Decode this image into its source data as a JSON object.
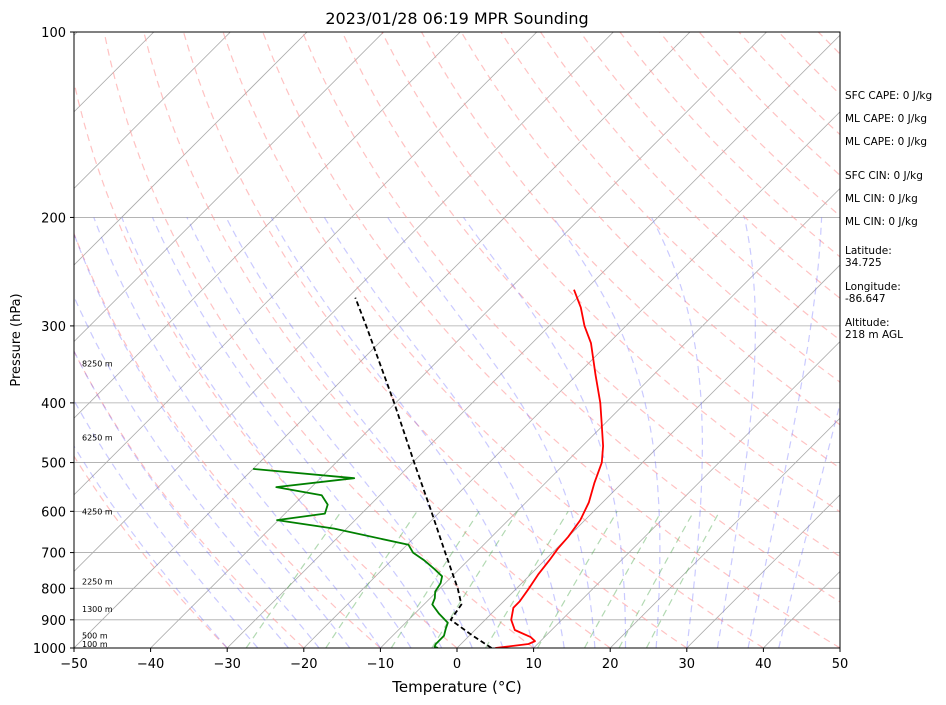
{
  "chart_data": {
    "type": "line",
    "title": "2023/01/28 06:19 MPR Sounding",
    "xlabel": "Temperature (°C)",
    "ylabel": "Pressure (hPa)",
    "xlim": [
      -50,
      50
    ],
    "ylim": [
      1000,
      100
    ],
    "y_scale": "log",
    "grid": true,
    "x_ticks": [
      -50,
      -40,
      -30,
      -20,
      -10,
      0,
      10,
      20,
      30,
      40,
      50
    ],
    "x_tick_labels": [
      "−50",
      "−40",
      "−30",
      "−20",
      "−10",
      "0",
      "10",
      "20",
      "30",
      "40",
      "50"
    ],
    "y_ticks": [
      1000,
      900,
      800,
      700,
      600,
      500,
      400,
      300,
      200,
      100
    ],
    "y_tick_labels": [
      "1000",
      "900",
      "800",
      "700",
      "600",
      "500",
      "400",
      "300",
      "200",
      "100"
    ],
    "skew_deg": 45,
    "series": [
      {
        "color": "#ff0000",
        "points": [
          [
            1000,
            5.0
          ],
          [
            985,
            8.8
          ],
          [
            975,
            9.3
          ],
          [
            960,
            8.2
          ],
          [
            935,
            5.2
          ],
          [
            900,
            3.4
          ],
          [
            860,
            2.1
          ],
          [
            840,
            2.1
          ],
          [
            800,
            1.6
          ],
          [
            760,
            1.0
          ],
          [
            720,
            0.6
          ],
          [
            690,
            0.2
          ],
          [
            660,
            0.0
          ],
          [
            620,
            -0.6
          ],
          [
            580,
            -1.8
          ],
          [
            540,
            -3.6
          ],
          [
            500,
            -5.3
          ],
          [
            470,
            -7.3
          ],
          [
            430,
            -10.6
          ],
          [
            400,
            -13.3
          ],
          [
            360,
            -17.6
          ],
          [
            320,
            -22.3
          ],
          [
            300,
            -25.4
          ],
          [
            280,
            -28.3
          ],
          [
            262,
            -31.5
          ]
        ]
      },
      {
        "color": "#008000",
        "points": [
          [
            1000,
            -2.5
          ],
          [
            995,
            -3.1
          ],
          [
            985,
            -3.3
          ],
          [
            970,
            -3.3
          ],
          [
            955,
            -3.3
          ],
          [
            930,
            -4.0
          ],
          [
            910,
            -4.5
          ],
          [
            880,
            -6.8
          ],
          [
            850,
            -8.9
          ],
          [
            830,
            -9.4
          ],
          [
            810,
            -10.2
          ],
          [
            785,
            -10.6
          ],
          [
            765,
            -11.3
          ],
          [
            745,
            -13.2
          ],
          [
            720,
            -15.8
          ],
          [
            700,
            -18.2
          ],
          [
            680,
            -19.8
          ],
          [
            640,
            -31.6
          ],
          [
            620,
            -40.2
          ],
          [
            605,
            -34.8
          ],
          [
            585,
            -35.6
          ],
          [
            565,
            -37.6
          ],
          [
            548,
            -44.6
          ],
          [
            530,
            -35.6
          ],
          [
            512,
            -50.0
          ]
        ]
      },
      {
        "color": "#000000",
        "dashed": true,
        "points": [
          [
            1000,
            4.5
          ],
          [
            950,
            0.0
          ],
          [
            900,
            -4.5
          ],
          [
            850,
            -5.1
          ],
          [
            800,
            -7.7
          ],
          [
            700,
            -14.0
          ],
          [
            600,
            -21.2
          ],
          [
            500,
            -29.8
          ],
          [
            400,
            -40.2
          ],
          [
            300,
            -53.9
          ],
          [
            270,
            -59.0
          ]
        ]
      }
    ],
    "height_labels": [
      {
        "p": 985,
        "text": "100 m"
      },
      {
        "p": 955,
        "text": "500 m"
      },
      {
        "p": 865,
        "text": "1300 m"
      },
      {
        "p": 780,
        "text": "2250 m"
      },
      {
        "p": 600,
        "text": "4250 m"
      },
      {
        "p": 455,
        "text": "6250 m"
      },
      {
        "p": 345,
        "text": "8250 m"
      }
    ]
  },
  "side_panel": {
    "stats": [
      "SFC CAPE: 0 J/kg",
      "ML CAPE: 0 J/kg",
      "ML CAPE: 0 J/kg",
      "SFC CIN: 0 J/kg",
      "ML CIN: 0 J/kg",
      "ML CIN: 0 J/kg"
    ],
    "meta": [
      "Latitude:\n34.725",
      "Longitude:\n-86.647",
      "Altitude:\n218 m AGL"
    ]
  }
}
